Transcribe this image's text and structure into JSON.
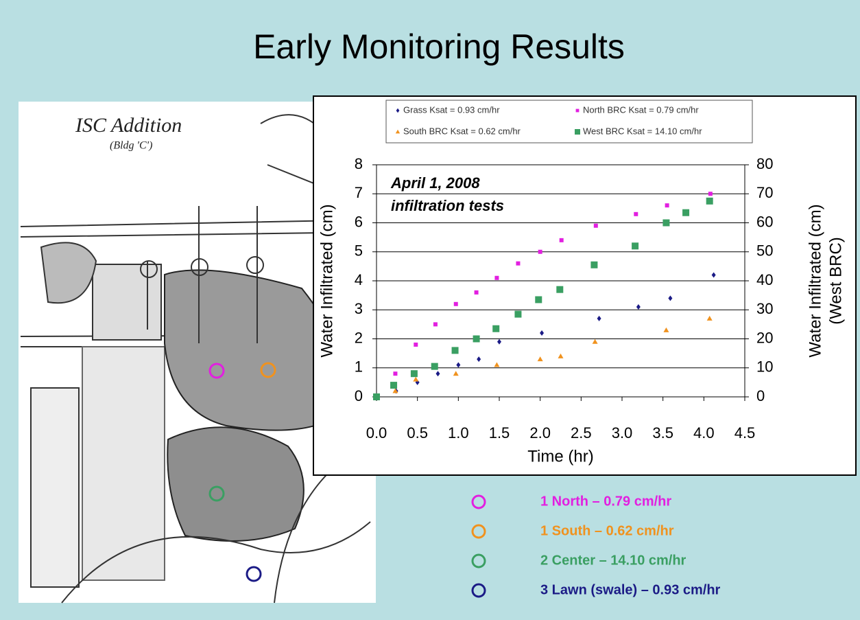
{
  "title": "Early Monitoring Results",
  "sketch_note": [
    "ISC Addition",
    "(Bldg 'C')"
  ],
  "site_legend": [
    {
      "label": "1 North – 0.79 cm/hr",
      "color": "#e21fe0"
    },
    {
      "label": "1 South – 0.62 cm/hr",
      "color": "#f0921e"
    },
    {
      "label": "2 Center – 14.10 cm/hr",
      "color": "#3a9f62"
    },
    {
      "label": "3 Lawn (swale) – 0.93 cm/hr",
      "color": "#1b1b86"
    }
  ],
  "chart_data": {
    "type": "scatter",
    "annotation": [
      "April 1, 2008",
      "infiltration tests"
    ],
    "xlabel": "Time (hr)",
    "ylabel": "Water Infiltrated (cm)",
    "y2label": [
      "Water Infiltrated (cm)",
      "(West BRC)"
    ],
    "xlim": [
      0,
      4.5
    ],
    "xticks": [
      {
        "value": 0,
        "label": "0.0"
      },
      0.5,
      {
        "value": 1,
        "label": "1.0"
      },
      1.5,
      {
        "value": 2,
        "label": "2.0"
      },
      2.5,
      {
        "value": 3,
        "label": "3.0"
      },
      3.5,
      {
        "value": 4,
        "label": "4.0"
      },
      4.5
    ],
    "ylim": [
      0,
      8
    ],
    "yticks": [
      0,
      1,
      2,
      3,
      4,
      5,
      6,
      7,
      8
    ],
    "y2lim": [
      0,
      80
    ],
    "y2ticks": [
      0,
      10,
      20,
      30,
      40,
      50,
      60,
      70,
      80
    ],
    "grid": true,
    "legend": "top",
    "series": [
      {
        "name": "Grass Ksat = 0.93 cm/hr",
        "color": "#1b1b86",
        "marker": "diamond",
        "x": [
          0.24,
          0.5,
          0.75,
          1.0,
          1.25,
          1.5,
          2.02,
          2.72,
          3.2,
          3.59,
          4.12
        ],
        "values": [
          0.2,
          0.5,
          0.8,
          1.1,
          1.3,
          1.9,
          2.2,
          2.7,
          3.1,
          3.4,
          4.2
        ]
      },
      {
        "name": "North BRC Ksat = 0.79 cm/hr",
        "color": "#e21fe0",
        "marker": "square",
        "x": [
          0.23,
          0.48,
          0.72,
          0.97,
          1.22,
          1.47,
          1.73,
          2.0,
          2.26,
          2.68,
          3.17,
          3.55,
          4.08
        ],
        "values": [
          0.8,
          1.8,
          2.5,
          3.2,
          3.6,
          4.1,
          4.6,
          5.0,
          5.4,
          5.9,
          6.3,
          6.6,
          7.0
        ]
      },
      {
        "name": "South BRC Ksat = 0.62 cm/hr",
        "color": "#f0921e",
        "marker": "triangle",
        "x": [
          0.23,
          0.48,
          0.97,
          1.47,
          2.0,
          2.25,
          2.67,
          3.54,
          4.07
        ],
        "values": [
          0.2,
          0.6,
          0.8,
          1.1,
          1.3,
          1.4,
          1.9,
          2.3,
          2.7
        ]
      },
      {
        "name": "West BRC Ksat = 14.10 cm/hr",
        "color": "#3a9f62",
        "marker": "bigsquare",
        "axis": "y2",
        "x": [
          0,
          0.21,
          0.46,
          0.71,
          0.96,
          1.22,
          1.46,
          1.73,
          1.98,
          2.24,
          2.66,
          3.16,
          3.54,
          3.78,
          4.07
        ],
        "values": [
          0,
          4,
          8,
          10.5,
          16,
          20,
          23.5,
          28.5,
          33.5,
          37,
          45.5,
          52,
          60,
          63.5,
          67.5
        ]
      }
    ]
  }
}
